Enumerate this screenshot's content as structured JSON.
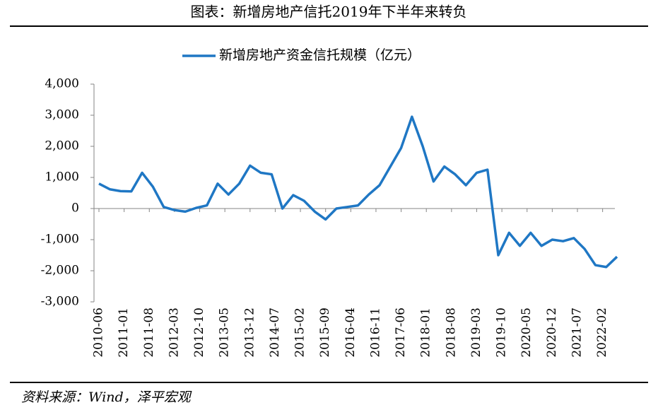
{
  "chart_data": {
    "type": "line",
    "title": "图表：新增房地产信托2019年下半年来转负",
    "source": "资料来源：Wind，泽平宏观",
    "x": [
      "2010-06",
      "2010-09",
      "2010-12",
      "2011-03",
      "2011-06",
      "2011-09",
      "2011-12",
      "2012-03",
      "2012-06",
      "2012-09",
      "2012-12",
      "2013-03",
      "2013-06",
      "2013-09",
      "2013-12",
      "2014-03",
      "2014-06",
      "2014-09",
      "2014-12",
      "2015-03",
      "2015-06",
      "2015-09",
      "2015-12",
      "2016-03",
      "2016-06",
      "2016-09",
      "2016-12",
      "2017-03",
      "2017-06",
      "2017-09",
      "2017-12",
      "2018-03",
      "2018-06",
      "2018-09",
      "2018-12",
      "2019-03",
      "2019-06",
      "2019-09",
      "2019-12",
      "2020-03",
      "2020-06",
      "2020-09",
      "2020-12",
      "2021-03",
      "2021-06",
      "2021-09",
      "2021-12",
      "2022-03",
      "2022-06"
    ],
    "series": [
      {
        "name": "新增房地产资金信托规模（亿元）",
        "color": "#1f77c4",
        "values": [
          800,
          620,
          560,
          550,
          1150,
          700,
          50,
          -50,
          -100,
          20,
          100,
          800,
          450,
          800,
          1380,
          1150,
          1100,
          0,
          430,
          250,
          -100,
          -350,
          0,
          50,
          100,
          450,
          750,
          1350,
          1950,
          2950,
          2000,
          870,
          1350,
          1100,
          750,
          1150,
          1250,
          -1500,
          -780,
          -1200,
          -780,
          -1200,
          -1000,
          -1050,
          -950,
          -1300,
          -1820,
          -1880,
          -1550
        ]
      }
    ],
    "xlim": [
      "2010-06",
      "2022-06"
    ],
    "xticks": [
      "2010-06",
      "2011-01",
      "2011-08",
      "2012-03",
      "2012-10",
      "2013-05",
      "2013-12",
      "2014-07",
      "2015-02",
      "2015-09",
      "2016-04",
      "2016-11",
      "2017-06",
      "2018-01",
      "2018-08",
      "2019-03",
      "2019-10",
      "2020-05",
      "2020-12",
      "2021-07",
      "2022-02"
    ],
    "ylim": [
      -3000,
      4000
    ],
    "yticks": [
      {
        "value": -3000,
        "label": "-3,000"
      },
      {
        "value": -2000,
        "label": "-2,000"
      },
      {
        "value": -1000,
        "label": "-1,000"
      },
      0,
      {
        "value": 1000,
        "label": "1,000"
      },
      {
        "value": 2000,
        "label": "2,000"
      },
      {
        "value": 3000,
        "label": "3,000"
      },
      {
        "value": 4000,
        "label": "4,000"
      }
    ],
    "grid": false
  }
}
